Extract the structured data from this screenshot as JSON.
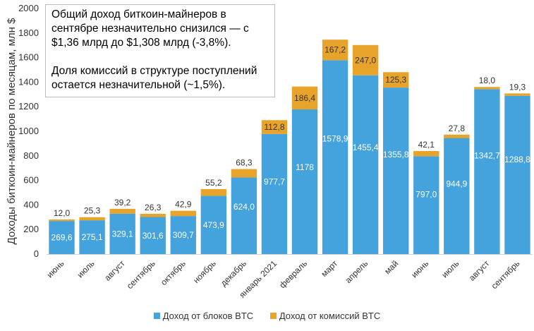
{
  "note": {
    "line1": "Общий доход биткоин-майнеров в сентябре незначительно снизился — с $1,36 млрд до $1,308 млрд (-3,8%).",
    "line2": "Доля комиссий в структуре поступлений остается незначительной (~1,5%)."
  },
  "chart_data": {
    "type": "bar",
    "stacked": true,
    "categories": [
      "июнь",
      "июль",
      "август",
      "сентябрь",
      "октябрь",
      "ноябрь",
      "декабрь",
      "январь 2021",
      "февраль",
      "март",
      "апрель",
      "май",
      "июнь",
      "июль",
      "август",
      "сентябрь"
    ],
    "series": [
      {
        "name": "Доход от блоков BTC",
        "color": "#44a3dd",
        "values": [
          269.6,
          275.1,
          329.1,
          301.6,
          309.7,
          473.9,
          624.0,
          977.7,
          1178,
          1578.9,
          1455.4,
          1355.8,
          797.0,
          944.9,
          1342.7,
          1288.8
        ],
        "labels": [
          "269,6",
          "275,1",
          "329,1",
          "301,6",
          "309,7",
          "473,9",
          "624,0",
          "977,7",
          "1178",
          "1578,9",
          "1455,4",
          "1355,8",
          "797,0",
          "944,9",
          "1342,7",
          "1288,8"
        ]
      },
      {
        "name": "Доход от комиссий BTC",
        "color": "#e8a32a",
        "values": [
          12.0,
          25.3,
          39.2,
          26.3,
          42.9,
          55.2,
          68.3,
          112.8,
          186.4,
          167.2,
          247.0,
          125.3,
          42.1,
          27.8,
          18.0,
          19.3
        ],
        "labels": [
          "12,0",
          "25,3",
          "39,2",
          "26,3",
          "42,9",
          "55,2",
          "68,3",
          "112,8",
          "186,4",
          "167,2",
          "247,0",
          "125,3",
          "42,1",
          "27,8",
          "18,0",
          "19,3"
        ]
      }
    ],
    "ylabel": "Доходы биткоин-майнеров по месяцам, млн $",
    "xlabel": "",
    "ylim": [
      0,
      2000
    ],
    "yticks": [
      0,
      200,
      400,
      600,
      800,
      1000,
      1200,
      1400,
      1600,
      1800,
      2000
    ],
    "grid": false,
    "legend_position": "bottom"
  }
}
